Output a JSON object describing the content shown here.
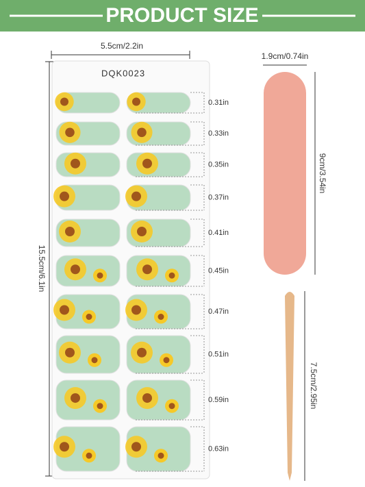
{
  "header": {
    "title": "PRODUCT SIZE"
  },
  "sheet": {
    "width_label": "5.5cm/2.2in",
    "height_label": "15.5cm/6.1in",
    "code": "DQK0023",
    "rows": [
      "0.31in",
      "0.33in",
      "0.35in",
      "0.37in",
      "0.41in",
      "0.45in",
      "0.47in",
      "0.51in",
      "0.59in",
      "0.63in"
    ]
  },
  "file": {
    "width_label": "1.9cm/0.74in",
    "height_label": "9cm/3.54in"
  },
  "stick": {
    "length_label": "7.5cm/2.95in"
  }
}
